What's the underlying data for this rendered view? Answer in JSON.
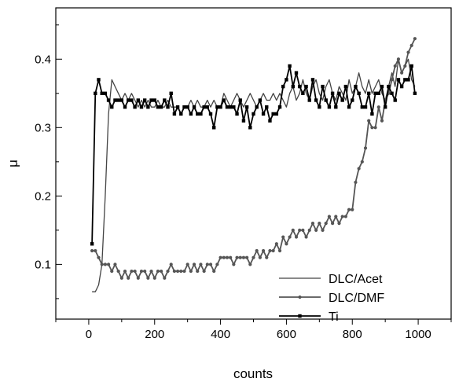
{
  "chart_data": {
    "type": "line",
    "xlabel": "counts",
    "ylabel": "μ",
    "xlim": [
      -100,
      1100
    ],
    "ylim": [
      0.02,
      0.475
    ],
    "x_ticks": [
      "0",
      "200",
      "400",
      "600",
      "800",
      "1000"
    ],
    "y_ticks": [
      "0.1",
      "0.2",
      "0.3",
      "0.4"
    ],
    "legend_position": "bottom-right",
    "series": [
      {
        "name": "DLC/Acet",
        "marker": "none",
        "color": "#444444",
        "x": [
          10,
          20,
          30,
          40,
          50,
          60,
          70,
          80,
          90,
          100,
          110,
          120,
          130,
          140,
          150,
          160,
          170,
          180,
          190,
          200,
          210,
          220,
          230,
          240,
          250,
          260,
          270,
          280,
          290,
          300,
          310,
          320,
          330,
          340,
          350,
          360,
          370,
          380,
          390,
          400,
          410,
          420,
          430,
          440,
          450,
          460,
          470,
          480,
          490,
          500,
          510,
          520,
          530,
          540,
          550,
          560,
          570,
          580,
          590,
          600,
          610,
          620,
          630,
          640,
          650,
          660,
          670,
          680,
          690,
          700,
          710,
          720,
          730,
          740,
          750,
          760,
          770,
          780,
          790,
          800,
          810,
          820,
          830,
          840,
          850,
          860,
          870,
          880,
          890,
          900,
          910,
          920,
          930,
          940,
          950,
          960,
          970,
          980,
          990
        ],
        "y": [
          0.06,
          0.06,
          0.07,
          0.1,
          0.2,
          0.32,
          0.37,
          0.36,
          0.35,
          0.34,
          0.35,
          0.34,
          0.35,
          0.34,
          0.33,
          0.34,
          0.33,
          0.34,
          0.33,
          0.33,
          0.34,
          0.33,
          0.33,
          0.34,
          0.33,
          0.33,
          0.33,
          0.32,
          0.33,
          0.33,
          0.34,
          0.33,
          0.34,
          0.33,
          0.33,
          0.34,
          0.33,
          0.34,
          0.33,
          0.33,
          0.35,
          0.34,
          0.33,
          0.34,
          0.35,
          0.34,
          0.33,
          0.34,
          0.35,
          0.34,
          0.33,
          0.34,
          0.35,
          0.34,
          0.34,
          0.35,
          0.34,
          0.35,
          0.34,
          0.33,
          0.35,
          0.36,
          0.34,
          0.35,
          0.37,
          0.35,
          0.34,
          0.36,
          0.37,
          0.35,
          0.34,
          0.36,
          0.37,
          0.35,
          0.34,
          0.36,
          0.35,
          0.34,
          0.37,
          0.35,
          0.36,
          0.38,
          0.36,
          0.35,
          0.37,
          0.35,
          0.36,
          0.37,
          0.35,
          0.34,
          0.36,
          0.38,
          0.36,
          0.4,
          0.38,
          0.39,
          0.4,
          0.37,
          0.36
        ]
      },
      {
        "name": "DLC/DMF",
        "marker": "circle",
        "color": "#555555",
        "x": [
          10,
          20,
          30,
          40,
          50,
          60,
          70,
          80,
          90,
          100,
          110,
          120,
          130,
          140,
          150,
          160,
          170,
          180,
          190,
          200,
          210,
          220,
          230,
          240,
          250,
          260,
          270,
          280,
          290,
          300,
          310,
          320,
          330,
          340,
          350,
          360,
          370,
          380,
          390,
          400,
          410,
          420,
          430,
          440,
          450,
          460,
          470,
          480,
          490,
          500,
          510,
          520,
          530,
          540,
          550,
          560,
          570,
          580,
          590,
          600,
          610,
          620,
          630,
          640,
          650,
          660,
          670,
          680,
          690,
          700,
          710,
          720,
          730,
          740,
          750,
          760,
          770,
          780,
          790,
          800,
          810,
          820,
          830,
          840,
          850,
          860,
          870,
          880,
          890,
          900,
          910,
          920,
          930,
          940,
          950,
          960,
          970,
          980,
          990
        ],
        "y": [
          0.12,
          0.12,
          0.11,
          0.1,
          0.1,
          0.1,
          0.09,
          0.1,
          0.09,
          0.08,
          0.09,
          0.08,
          0.09,
          0.09,
          0.08,
          0.09,
          0.09,
          0.08,
          0.09,
          0.08,
          0.09,
          0.09,
          0.08,
          0.09,
          0.1,
          0.09,
          0.09,
          0.09,
          0.09,
          0.1,
          0.09,
          0.1,
          0.09,
          0.1,
          0.09,
          0.1,
          0.1,
          0.09,
          0.1,
          0.11,
          0.11,
          0.11,
          0.11,
          0.1,
          0.11,
          0.11,
          0.11,
          0.11,
          0.1,
          0.11,
          0.12,
          0.11,
          0.12,
          0.11,
          0.12,
          0.12,
          0.13,
          0.12,
          0.14,
          0.13,
          0.14,
          0.15,
          0.14,
          0.15,
          0.15,
          0.14,
          0.15,
          0.16,
          0.15,
          0.16,
          0.15,
          0.16,
          0.17,
          0.16,
          0.17,
          0.16,
          0.17,
          0.17,
          0.18,
          0.18,
          0.22,
          0.24,
          0.25,
          0.27,
          0.31,
          0.3,
          0.3,
          0.33,
          0.31,
          0.34,
          0.35,
          0.37,
          0.39,
          0.4,
          0.38,
          0.39,
          0.41,
          0.42,
          0.43
        ]
      },
      {
        "name": "Ti",
        "marker": "square",
        "color": "#000000",
        "x": [
          10,
          20,
          30,
          40,
          50,
          60,
          70,
          80,
          90,
          100,
          110,
          120,
          130,
          140,
          150,
          160,
          170,
          180,
          190,
          200,
          210,
          220,
          230,
          240,
          250,
          260,
          270,
          280,
          290,
          300,
          310,
          320,
          330,
          340,
          350,
          360,
          370,
          380,
          390,
          400,
          410,
          420,
          430,
          440,
          450,
          460,
          470,
          480,
          490,
          500,
          510,
          520,
          530,
          540,
          550,
          560,
          570,
          580,
          590,
          600,
          610,
          620,
          630,
          640,
          650,
          660,
          670,
          680,
          690,
          700,
          710,
          720,
          730,
          740,
          750,
          760,
          770,
          780,
          790,
          800,
          810,
          820,
          830,
          840,
          850,
          860,
          870,
          880,
          890,
          900,
          910,
          920,
          930,
          940,
          950,
          960,
          970,
          980,
          990
        ],
        "y": [
          0.13,
          0.35,
          0.37,
          0.35,
          0.35,
          0.34,
          0.33,
          0.34,
          0.34,
          0.34,
          0.33,
          0.34,
          0.34,
          0.33,
          0.34,
          0.33,
          0.34,
          0.33,
          0.34,
          0.34,
          0.33,
          0.33,
          0.34,
          0.33,
          0.35,
          0.32,
          0.33,
          0.32,
          0.33,
          0.33,
          0.32,
          0.33,
          0.32,
          0.32,
          0.33,
          0.33,
          0.32,
          0.3,
          0.33,
          0.33,
          0.34,
          0.33,
          0.33,
          0.33,
          0.32,
          0.34,
          0.31,
          0.33,
          0.3,
          0.32,
          0.33,
          0.34,
          0.32,
          0.33,
          0.31,
          0.32,
          0.32,
          0.33,
          0.36,
          0.37,
          0.39,
          0.36,
          0.38,
          0.36,
          0.35,
          0.36,
          0.34,
          0.37,
          0.34,
          0.33,
          0.36,
          0.34,
          0.33,
          0.35,
          0.33,
          0.35,
          0.34,
          0.36,
          0.33,
          0.34,
          0.36,
          0.35,
          0.33,
          0.33,
          0.35,
          0.32,
          0.35,
          0.35,
          0.36,
          0.33,
          0.36,
          0.35,
          0.34,
          0.37,
          0.36,
          0.37,
          0.37,
          0.39,
          0.35
        ]
      }
    ]
  }
}
